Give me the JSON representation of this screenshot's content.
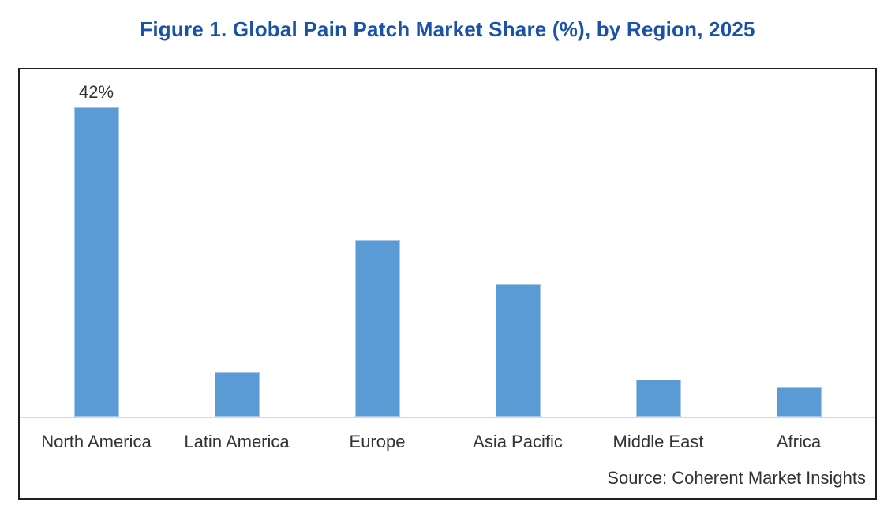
{
  "figure": {
    "title": "Figure 1. Global Pain Patch Market Share (%), by Region, 2025",
    "source": "Source: Coherent Market Insights"
  },
  "colors": {
    "title_color": "#1a52a8",
    "bar_color": "#5b9bd5",
    "bar_border": "#a9c7e8",
    "axis_line": "#d9d9d9",
    "text_color": "#333333",
    "frame_border": "#1f1f1f"
  },
  "chart_data": {
    "type": "bar",
    "title": "Figure 1. Global Pain Patch Market Share (%), by Region, 2025",
    "categories": [
      "North America",
      "Latin America",
      "Europe",
      "Asia Pacific",
      "Middle East",
      "Africa"
    ],
    "values": [
      42,
      6,
      24,
      18,
      5,
      4
    ],
    "data_labels": [
      "42%",
      "",
      "",
      "",
      "",
      ""
    ],
    "xlabel": "",
    "ylabel": "",
    "ylim": [
      0,
      45
    ],
    "grid": false,
    "legend": false,
    "bar_color": "#5b9bd5",
    "source": "Source: Coherent Market Insights"
  }
}
